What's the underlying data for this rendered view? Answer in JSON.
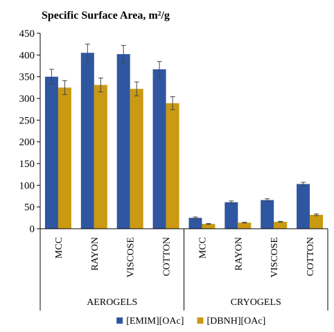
{
  "chart_data": {
    "type": "bar",
    "title": "Specific Surface Area, m²/g",
    "xlabel": "",
    "ylabel": "",
    "ylim": [
      0,
      450
    ],
    "yticks": [
      0,
      50,
      100,
      150,
      200,
      250,
      300,
      350,
      400,
      450
    ],
    "groups": [
      {
        "label": "AEROGELS",
        "categories": [
          "MCC",
          "RAYON",
          "VISCOSE",
          "COTTON"
        ]
      },
      {
        "label": "CRYOGELS",
        "categories": [
          "MCC",
          "RAYON",
          "VISCOSE",
          "COTTON"
        ]
      }
    ],
    "series": [
      {
        "name": "[EMIM][OAc]",
        "color": "#2f56a0",
        "values": [
          350,
          405,
          402,
          367,
          25,
          61,
          66,
          103
        ],
        "errors": [
          17,
          20,
          20,
          18,
          2,
          3,
          3,
          4
        ]
      },
      {
        "name": "[DBNH][OAc]",
        "color": "#c99a12",
        "values": [
          325,
          331,
          322,
          289,
          11,
          14,
          16,
          32
        ],
        "errors": [
          16,
          16,
          16,
          15,
          1,
          1,
          1,
          2
        ]
      }
    ],
    "grid": false,
    "legend_position": "bottom"
  }
}
